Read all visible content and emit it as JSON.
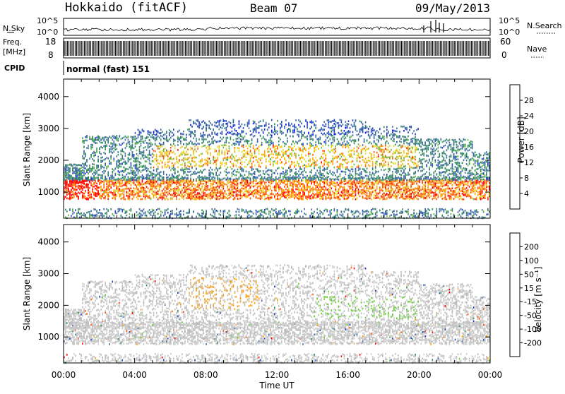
{
  "header": {
    "station": "Hokkaido (fitACF)",
    "beam": "Beam 07",
    "date": "09/May/2013"
  },
  "params": {
    "nsky_label": "N.Sky",
    "nsky_ticks": [
      "10^5",
      "10^0"
    ],
    "nsearch_label": "N.Search",
    "nsearch_ticks": [
      "10^5",
      "10^0"
    ],
    "freq_label": "Freq.",
    "freq_unit": "[MHz]",
    "freq_ticks": [
      "18",
      "8"
    ],
    "nave_label": "Nave",
    "nave_ticks": [
      "60",
      "0"
    ],
    "cpid_label": "CPID",
    "cpid_value": "normal (fast) 151"
  },
  "colors": {
    "power_scale": [
      "#0000ff",
      "#2040c0",
      "#3a6aa0",
      "#2e8b57",
      "#66bb44",
      "#dddd22",
      "#ffaa00",
      "#ff5500",
      "#ff0000"
    ],
    "velocity_scale": [
      "#ff0000",
      "#ff5500",
      "#ff9900",
      "#e0b060",
      "#bbbbbb",
      "#cccccc",
      "#66cc33",
      "#2e8b57",
      "#3a6aa0",
      "#2040c0"
    ]
  },
  "chart_data": [
    {
      "type": "heatmap",
      "name": "power",
      "ylabel": "Slant Range [km]",
      "xlabel": "Time UT",
      "x_ticks": [
        "00:00",
        "04:00",
        "08:00",
        "12:00",
        "16:00",
        "20:00",
        "00:00"
      ],
      "x_range_hours": [
        0,
        24
      ],
      "y_ticks": [
        "1000",
        "2000",
        "3000",
        "4000"
      ],
      "y_range_km": [
        180,
        4550
      ],
      "colorbar_label": "Power [dB]",
      "colorbar_ticks": [
        "4",
        "8",
        "12",
        "16",
        "20",
        "24",
        "28"
      ],
      "colorbar_range": [
        0,
        30
      ]
    },
    {
      "type": "heatmap",
      "name": "velocity",
      "ylabel": "Slant Range [km]",
      "xlabel": "Time UT",
      "x_ticks": [
        "00:00",
        "04:00",
        "08:00",
        "12:00",
        "16:00",
        "20:00",
        "00:00"
      ],
      "x_range_hours": [
        0,
        24
      ],
      "y_ticks": [
        "1000",
        "2000",
        "3000",
        "4000"
      ],
      "y_range_km": [
        180,
        4550
      ],
      "colorbar_label": "Velocity [m s⁻¹]",
      "colorbar_ticks": [
        "-200",
        "-100",
        "-50",
        "-15",
        "15",
        "50",
        "100",
        "200"
      ],
      "colorbar_range": [
        -250,
        250
      ]
    }
  ]
}
